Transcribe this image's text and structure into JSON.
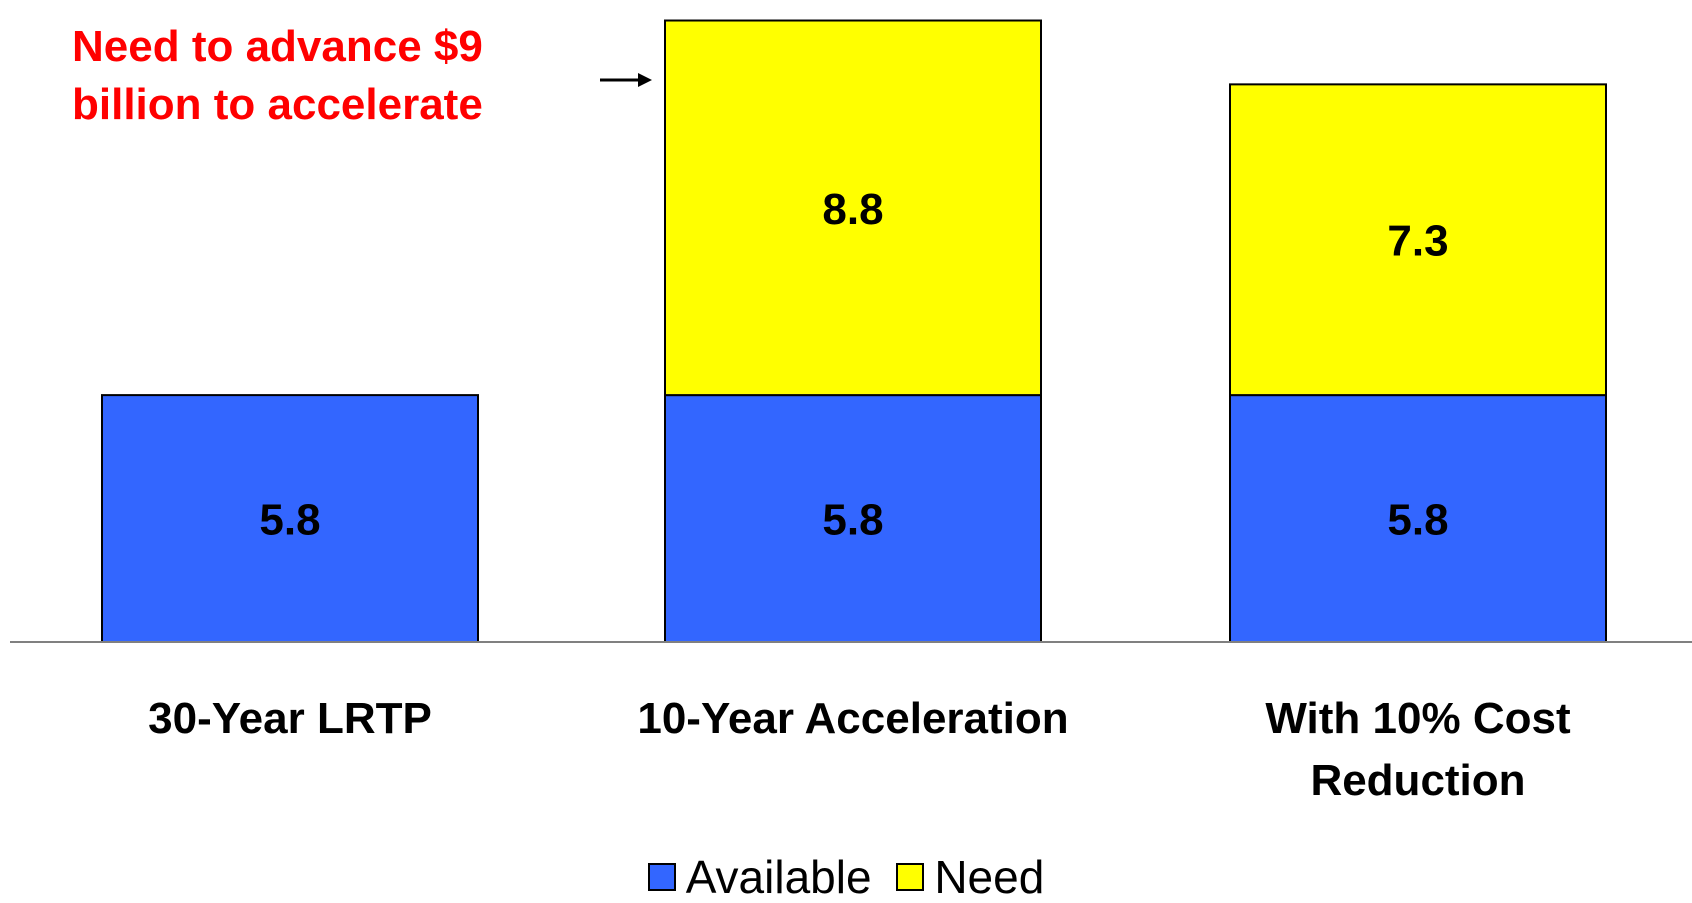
{
  "chart_data": {
    "type": "bar",
    "stacked": true,
    "title": "",
    "xlabel": "",
    "ylabel": "",
    "ylim": [
      0,
      14.8
    ],
    "grid": false,
    "legend_position": "bottom",
    "categories": [
      "30-Year LRTP",
      "10-Year Acceleration",
      "With 10% Cost Reduction"
    ],
    "series": [
      {
        "name": "Available",
        "color": "#3366ff",
        "values": [
          5.8,
          5.8,
          5.8
        ]
      },
      {
        "name": "Need",
        "color": "#ffff00",
        "values": [
          null,
          8.8,
          7.3
        ]
      }
    ],
    "data_labels": [
      [
        "5.8",
        "5.8",
        "5.8"
      ],
      [
        "",
        "8.8",
        "7.3"
      ]
    ],
    "annotation": {
      "text": "Need to advance $9 billion to accelerate",
      "color": "#ff0000",
      "target_category": "10-Year Acceleration"
    }
  }
}
